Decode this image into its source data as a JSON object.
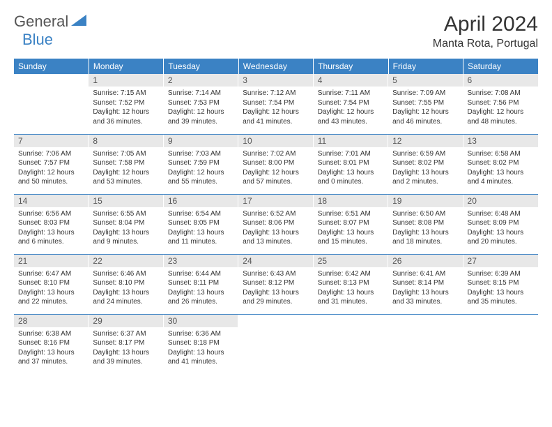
{
  "brand": {
    "part1": "General",
    "part2": "Blue"
  },
  "title": "April 2024",
  "location": "Manta Rota, Portugal",
  "colors": {
    "header_bg": "#3b82c4",
    "header_text": "#ffffff",
    "daynum_bg": "#e8e8e8",
    "daynum_text": "#555555",
    "body_text": "#333333",
    "divider": "#3b82c4"
  },
  "day_headers": [
    "Sunday",
    "Monday",
    "Tuesday",
    "Wednesday",
    "Thursday",
    "Friday",
    "Saturday"
  ],
  "weeks": [
    [
      {
        "blank": true
      },
      {
        "n": "1",
        "sr": "Sunrise: 7:15 AM",
        "ss": "Sunset: 7:52 PM",
        "d1": "Daylight: 12 hours",
        "d2": "and 36 minutes."
      },
      {
        "n": "2",
        "sr": "Sunrise: 7:14 AM",
        "ss": "Sunset: 7:53 PM",
        "d1": "Daylight: 12 hours",
        "d2": "and 39 minutes."
      },
      {
        "n": "3",
        "sr": "Sunrise: 7:12 AM",
        "ss": "Sunset: 7:54 PM",
        "d1": "Daylight: 12 hours",
        "d2": "and 41 minutes."
      },
      {
        "n": "4",
        "sr": "Sunrise: 7:11 AM",
        "ss": "Sunset: 7:54 PM",
        "d1": "Daylight: 12 hours",
        "d2": "and 43 minutes."
      },
      {
        "n": "5",
        "sr": "Sunrise: 7:09 AM",
        "ss": "Sunset: 7:55 PM",
        "d1": "Daylight: 12 hours",
        "d2": "and 46 minutes."
      },
      {
        "n": "6",
        "sr": "Sunrise: 7:08 AM",
        "ss": "Sunset: 7:56 PM",
        "d1": "Daylight: 12 hours",
        "d2": "and 48 minutes."
      }
    ],
    [
      {
        "n": "7",
        "sr": "Sunrise: 7:06 AM",
        "ss": "Sunset: 7:57 PM",
        "d1": "Daylight: 12 hours",
        "d2": "and 50 minutes."
      },
      {
        "n": "8",
        "sr": "Sunrise: 7:05 AM",
        "ss": "Sunset: 7:58 PM",
        "d1": "Daylight: 12 hours",
        "d2": "and 53 minutes."
      },
      {
        "n": "9",
        "sr": "Sunrise: 7:03 AM",
        "ss": "Sunset: 7:59 PM",
        "d1": "Daylight: 12 hours",
        "d2": "and 55 minutes."
      },
      {
        "n": "10",
        "sr": "Sunrise: 7:02 AM",
        "ss": "Sunset: 8:00 PM",
        "d1": "Daylight: 12 hours",
        "d2": "and 57 minutes."
      },
      {
        "n": "11",
        "sr": "Sunrise: 7:01 AM",
        "ss": "Sunset: 8:01 PM",
        "d1": "Daylight: 13 hours",
        "d2": "and 0 minutes."
      },
      {
        "n": "12",
        "sr": "Sunrise: 6:59 AM",
        "ss": "Sunset: 8:02 PM",
        "d1": "Daylight: 13 hours",
        "d2": "and 2 minutes."
      },
      {
        "n": "13",
        "sr": "Sunrise: 6:58 AM",
        "ss": "Sunset: 8:02 PM",
        "d1": "Daylight: 13 hours",
        "d2": "and 4 minutes."
      }
    ],
    [
      {
        "n": "14",
        "sr": "Sunrise: 6:56 AM",
        "ss": "Sunset: 8:03 PM",
        "d1": "Daylight: 13 hours",
        "d2": "and 6 minutes."
      },
      {
        "n": "15",
        "sr": "Sunrise: 6:55 AM",
        "ss": "Sunset: 8:04 PM",
        "d1": "Daylight: 13 hours",
        "d2": "and 9 minutes."
      },
      {
        "n": "16",
        "sr": "Sunrise: 6:54 AM",
        "ss": "Sunset: 8:05 PM",
        "d1": "Daylight: 13 hours",
        "d2": "and 11 minutes."
      },
      {
        "n": "17",
        "sr": "Sunrise: 6:52 AM",
        "ss": "Sunset: 8:06 PM",
        "d1": "Daylight: 13 hours",
        "d2": "and 13 minutes."
      },
      {
        "n": "18",
        "sr": "Sunrise: 6:51 AM",
        "ss": "Sunset: 8:07 PM",
        "d1": "Daylight: 13 hours",
        "d2": "and 15 minutes."
      },
      {
        "n": "19",
        "sr": "Sunrise: 6:50 AM",
        "ss": "Sunset: 8:08 PM",
        "d1": "Daylight: 13 hours",
        "d2": "and 18 minutes."
      },
      {
        "n": "20",
        "sr": "Sunrise: 6:48 AM",
        "ss": "Sunset: 8:09 PM",
        "d1": "Daylight: 13 hours",
        "d2": "and 20 minutes."
      }
    ],
    [
      {
        "n": "21",
        "sr": "Sunrise: 6:47 AM",
        "ss": "Sunset: 8:10 PM",
        "d1": "Daylight: 13 hours",
        "d2": "and 22 minutes."
      },
      {
        "n": "22",
        "sr": "Sunrise: 6:46 AM",
        "ss": "Sunset: 8:10 PM",
        "d1": "Daylight: 13 hours",
        "d2": "and 24 minutes."
      },
      {
        "n": "23",
        "sr": "Sunrise: 6:44 AM",
        "ss": "Sunset: 8:11 PM",
        "d1": "Daylight: 13 hours",
        "d2": "and 26 minutes."
      },
      {
        "n": "24",
        "sr": "Sunrise: 6:43 AM",
        "ss": "Sunset: 8:12 PM",
        "d1": "Daylight: 13 hours",
        "d2": "and 29 minutes."
      },
      {
        "n": "25",
        "sr": "Sunrise: 6:42 AM",
        "ss": "Sunset: 8:13 PM",
        "d1": "Daylight: 13 hours",
        "d2": "and 31 minutes."
      },
      {
        "n": "26",
        "sr": "Sunrise: 6:41 AM",
        "ss": "Sunset: 8:14 PM",
        "d1": "Daylight: 13 hours",
        "d2": "and 33 minutes."
      },
      {
        "n": "27",
        "sr": "Sunrise: 6:39 AM",
        "ss": "Sunset: 8:15 PM",
        "d1": "Daylight: 13 hours",
        "d2": "and 35 minutes."
      }
    ],
    [
      {
        "n": "28",
        "sr": "Sunrise: 6:38 AM",
        "ss": "Sunset: 8:16 PM",
        "d1": "Daylight: 13 hours",
        "d2": "and 37 minutes."
      },
      {
        "n": "29",
        "sr": "Sunrise: 6:37 AM",
        "ss": "Sunset: 8:17 PM",
        "d1": "Daylight: 13 hours",
        "d2": "and 39 minutes."
      },
      {
        "n": "30",
        "sr": "Sunrise: 6:36 AM",
        "ss": "Sunset: 8:18 PM",
        "d1": "Daylight: 13 hours",
        "d2": "and 41 minutes."
      },
      {
        "blank": true
      },
      {
        "blank": true
      },
      {
        "blank": true
      },
      {
        "blank": true
      }
    ]
  ]
}
